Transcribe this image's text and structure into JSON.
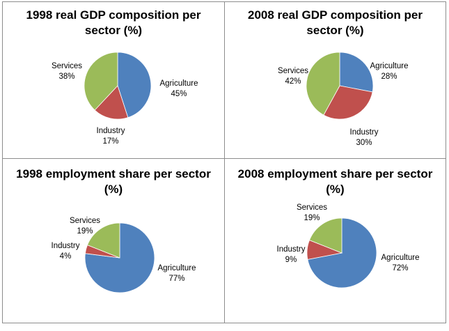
{
  "chart_data": [
    {
      "type": "pie",
      "title": "1998 real GDP composition per sector (%)",
      "slices": [
        {
          "label": "Agriculture",
          "value": 45,
          "value_label": "45%",
          "color": "#4f81bd"
        },
        {
          "label": "Industry",
          "value": 17,
          "value_label": "17%",
          "color": "#c0504d"
        },
        {
          "label": "Services",
          "value": 38,
          "value_label": "38%",
          "color": "#9bbb59"
        }
      ]
    },
    {
      "type": "pie",
      "title": "2008 real GDP composition per sector (%)",
      "slices": [
        {
          "label": "Agriculture",
          "value": 28,
          "value_label": "28%",
          "color": "#4f81bd"
        },
        {
          "label": "Industry",
          "value": 30,
          "value_label": "30%",
          "color": "#c0504d"
        },
        {
          "label": "Services",
          "value": 42,
          "value_label": "42%",
          "color": "#9bbb59"
        }
      ]
    },
    {
      "type": "pie",
      "title": "1998 employment share per sector (%)",
      "slices": [
        {
          "label": "Agriculture",
          "value": 77,
          "value_label": "77%",
          "color": "#4f81bd"
        },
        {
          "label": "Industry",
          "value": 4,
          "value_label": "4%",
          "color": "#c0504d"
        },
        {
          "label": "Services",
          "value": 19,
          "value_label": "19%",
          "color": "#9bbb59"
        }
      ]
    },
    {
      "type": "pie",
      "title": "2008 employment share per sector (%)",
      "slices": [
        {
          "label": "Agriculture",
          "value": 72,
          "value_label": "72%",
          "color": "#4f81bd"
        },
        {
          "label": "Industry",
          "value": 9,
          "value_label": "9%",
          "color": "#c0504d"
        },
        {
          "label": "Services",
          "value": 19,
          "value_label": "19%",
          "color": "#9bbb59"
        }
      ]
    }
  ]
}
